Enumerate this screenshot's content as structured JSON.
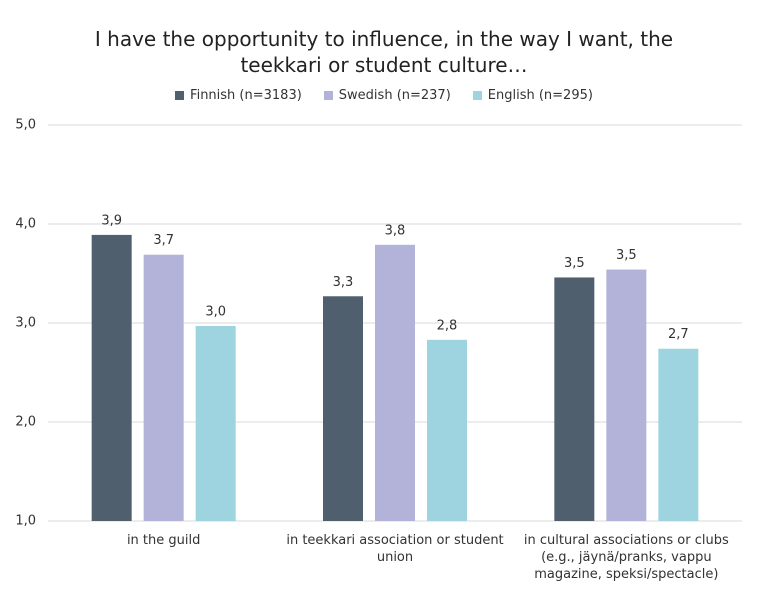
{
  "chart_data": {
    "type": "bar",
    "title": "I have the opportunity to influence, in the way I want, the teekkari or student culture…",
    "categories": [
      "in the guild",
      "in teekkari association or student union",
      "in cultural associations or clubs (e.g., jäynä/pranks, vappu magazine, speksi/spectacle)"
    ],
    "series": [
      {
        "name": "Finnish (n=3183)",
        "color": "#4f5f6e",
        "values": [
          3.89,
          3.27,
          3.46
        ],
        "value_labels": [
          "3,9",
          "3,3",
          "3,5"
        ]
      },
      {
        "name": "Swedish (n=237)",
        "color": "#b3b3d9",
        "values": [
          3.69,
          3.79,
          3.54
        ],
        "value_labels": [
          "3,7",
          "3,8",
          "3,5"
        ]
      },
      {
        "name": "English (n=295)",
        "color": "#9dd4df",
        "values": [
          2.97,
          2.83,
          2.74
        ],
        "value_labels": [
          "3,0",
          "2,8",
          "2,7"
        ]
      }
    ],
    "ylim": [
      1,
      5
    ],
    "yticks": [
      {
        "value": 1,
        "label": "1,0"
      },
      {
        "value": 2,
        "label": "2,0"
      },
      {
        "value": 3,
        "label": "3,0"
      },
      {
        "value": 4,
        "label": "4,0"
      },
      {
        "value": 5,
        "label": "5,0"
      }
    ],
    "grid": true,
    "legend": "top"
  }
}
